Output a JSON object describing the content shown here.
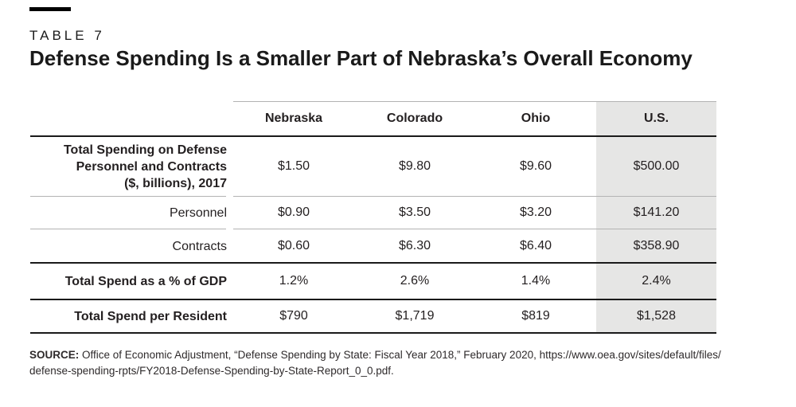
{
  "header": {
    "kicker": "TABLE 7",
    "title": "Defense Spending Is a Smaller Part of Nebraska’s Overall Economy"
  },
  "chart_data": {
    "type": "table",
    "title": "Defense Spending Is a Smaller Part of Nebraska’s Overall Economy",
    "columns": [
      "Nebraska",
      "Colorado",
      "Ohio",
      "U.S."
    ],
    "highlighted_column": "U.S.",
    "highlight_color": "#e6e6e5",
    "rows": [
      {
        "label": "Total Spending on Defense\nPersonnel and Contracts\n($, billions), 2017",
        "values": [
          "$1.50",
          "$9.80",
          "$9.60",
          "$500.00"
        ]
      },
      {
        "label": "Personnel",
        "values": [
          "$0.90",
          "$3.50",
          "$3.20",
          "$141.20"
        ]
      },
      {
        "label": "Contracts",
        "values": [
          "$0.60",
          "$6.30",
          "$6.40",
          "$358.90"
        ]
      },
      {
        "label": "Total Spend as a % of GDP",
        "values": [
          "1.2%",
          "2.6%",
          "1.4%",
          "2.4%"
        ]
      },
      {
        "label": "Total Spend per Resident",
        "values": [
          "$790",
          "$1,719",
          "$819",
          "$1,528"
        ]
      }
    ]
  },
  "source": {
    "label": "SOURCE:",
    "text": " Office of Economic Adjustment, “Defense Spending by State: Fiscal Year 2018,” February 2020, https://www.oea.gov/sites/default/files/\ndefense-spending-rpts/FY2018-Defense-Spending-by-State-Report_0_0.pdf."
  }
}
